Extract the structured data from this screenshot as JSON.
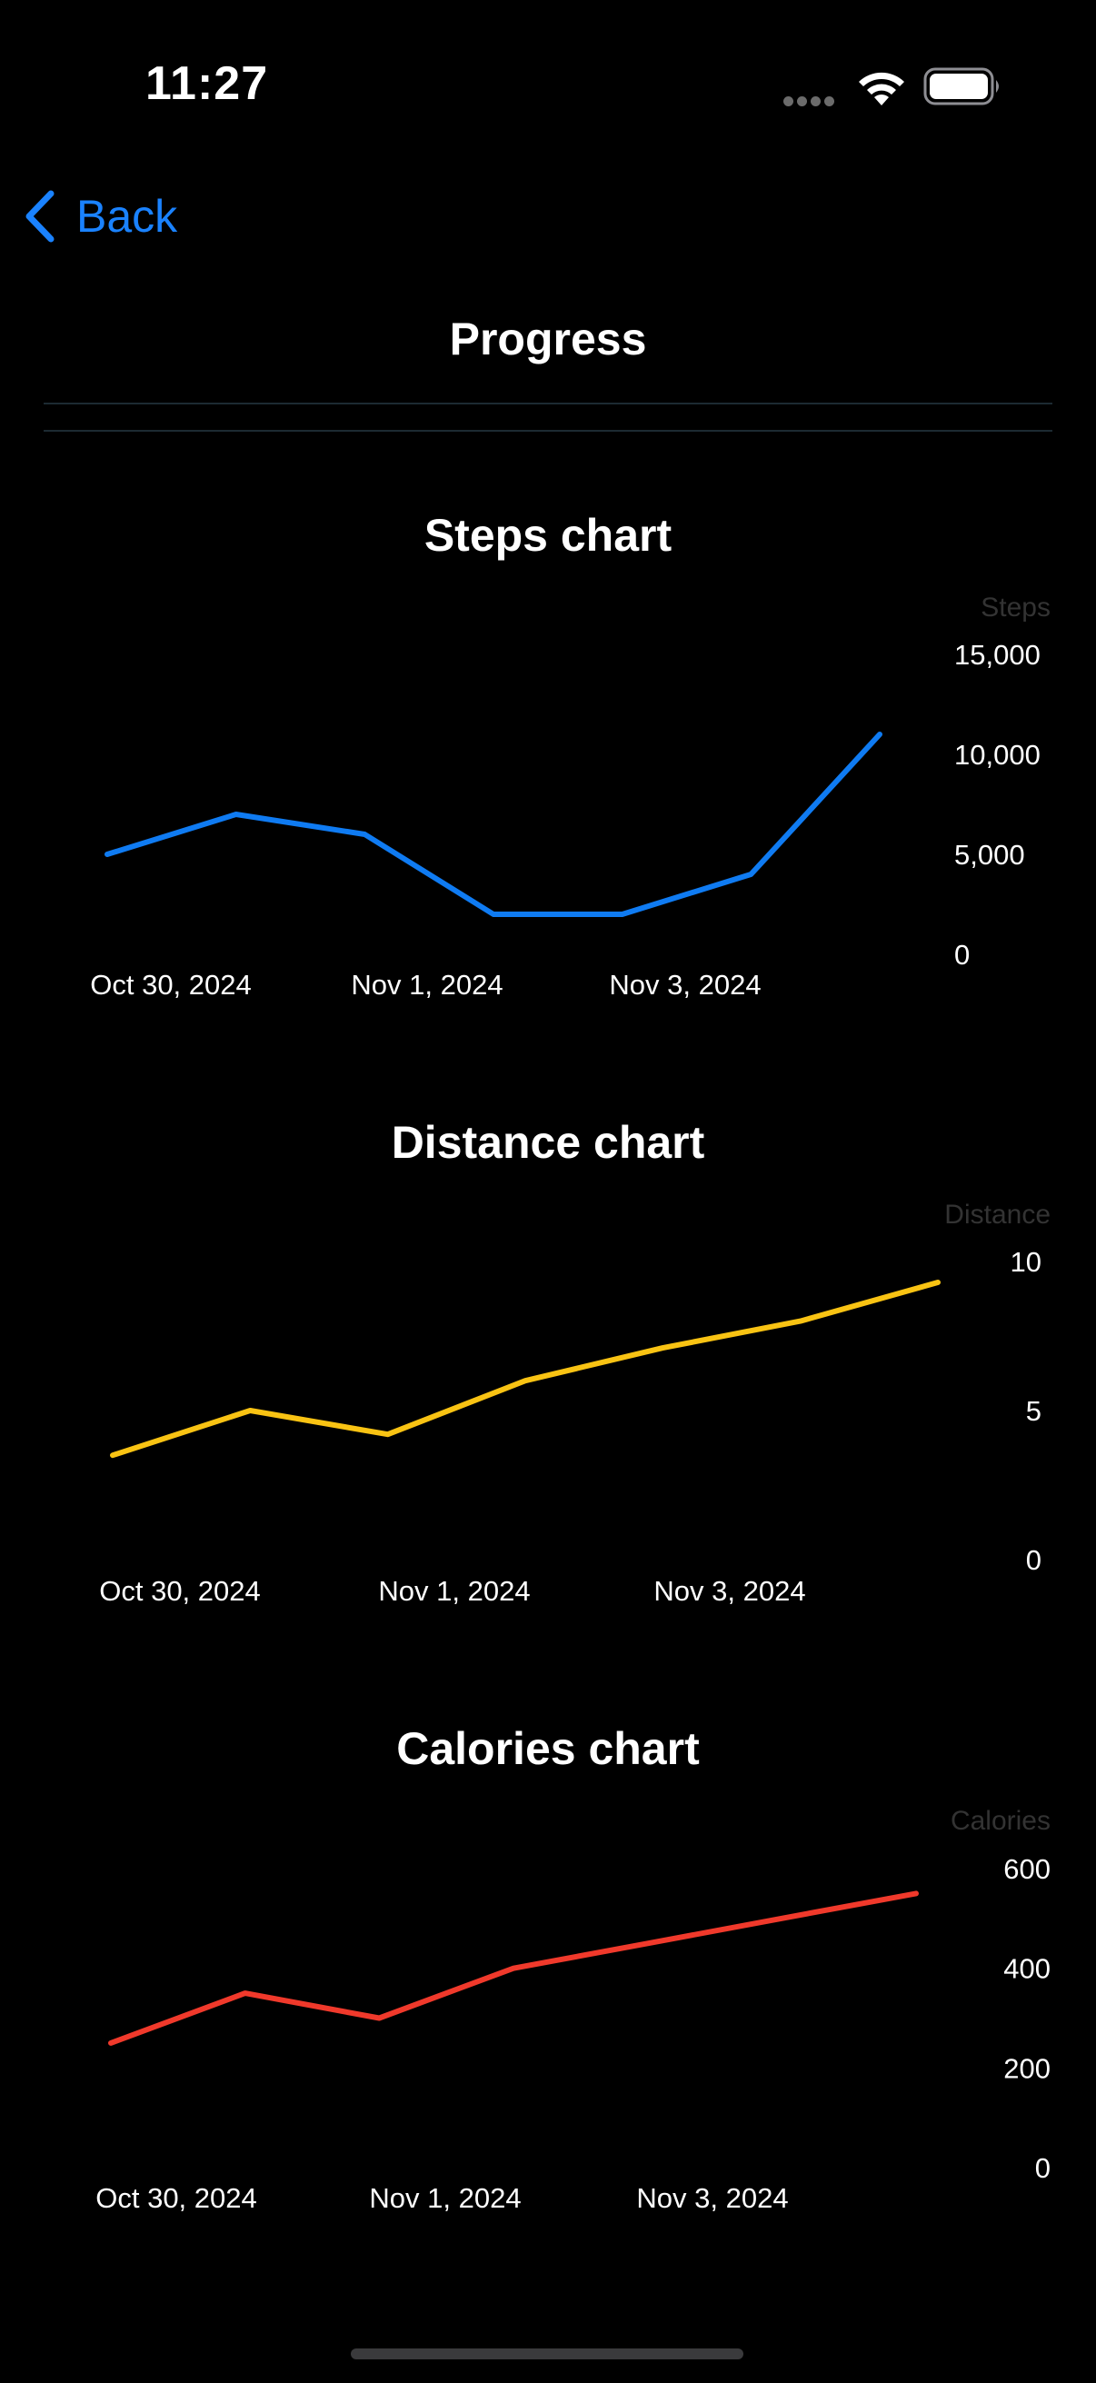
{
  "status_bar": {
    "time": "11:27"
  },
  "nav": {
    "back_label": "Back",
    "title": "Progress"
  },
  "colors": {
    "accent": "#1a82ff",
    "steps_line": "#0f7bf2",
    "distance_line": "#f9c313",
    "calories_line": "#f0392b",
    "axis_text": "#ffffff",
    "axis_title": "#333333"
  },
  "chart_data": [
    {
      "type": "line",
      "title": "Steps chart",
      "ylabel": "Steps",
      "x": [
        "2024-10-30",
        "2024-10-31",
        "2024-11-01",
        "2024-11-02",
        "2024-11-03",
        "2024-11-04",
        "2024-11-05"
      ],
      "values": [
        5000,
        7000,
        6000,
        2000,
        2000,
        4000,
        11000
      ],
      "ylim": [
        0,
        15000
      ],
      "yticks": [
        0,
        5000,
        10000,
        15000
      ],
      "ytick_labels": [
        "0",
        "5,000",
        "10,000",
        "15,000"
      ],
      "xtick_labels": [
        "Oct 30, 2024",
        "Nov 1, 2024",
        "Nov 3, 2024"
      ],
      "grid": false,
      "color": "#0f7bf2"
    },
    {
      "type": "line",
      "title": "Distance chart",
      "ylabel": "Distance",
      "x": [
        "2024-10-30",
        "2024-10-31",
        "2024-11-01",
        "2024-11-02",
        "2024-11-03",
        "2024-11-04",
        "2024-11-05"
      ],
      "values": [
        3.5,
        5,
        4.2,
        6,
        7.1,
        8,
        9.3
      ],
      "ylim": [
        0,
        10
      ],
      "yticks": [
        0,
        5,
        10
      ],
      "ytick_labels": [
        "0",
        "5",
        "10"
      ],
      "xtick_labels": [
        "Oct 30, 2024",
        "Nov 1, 2024",
        "Nov 3, 2024"
      ],
      "grid": false,
      "color": "#f9c313"
    },
    {
      "type": "line",
      "title": "Calories chart",
      "ylabel": "Calories",
      "x": [
        "2024-10-30",
        "2024-10-31",
        "2024-11-01",
        "2024-11-02",
        "2024-11-03",
        "2024-11-04",
        "2024-11-05"
      ],
      "values": [
        250,
        350,
        300,
        400,
        450,
        500,
        550
      ],
      "ylim": [
        0,
        600
      ],
      "yticks": [
        0,
        200,
        400,
        600
      ],
      "ytick_labels": [
        "0",
        "200",
        "400",
        "600"
      ],
      "xtick_labels": [
        "Oct 30, 2024",
        "Nov 1, 2024",
        "Nov 3, 2024"
      ],
      "grid": false,
      "color": "#f0392b"
    }
  ]
}
